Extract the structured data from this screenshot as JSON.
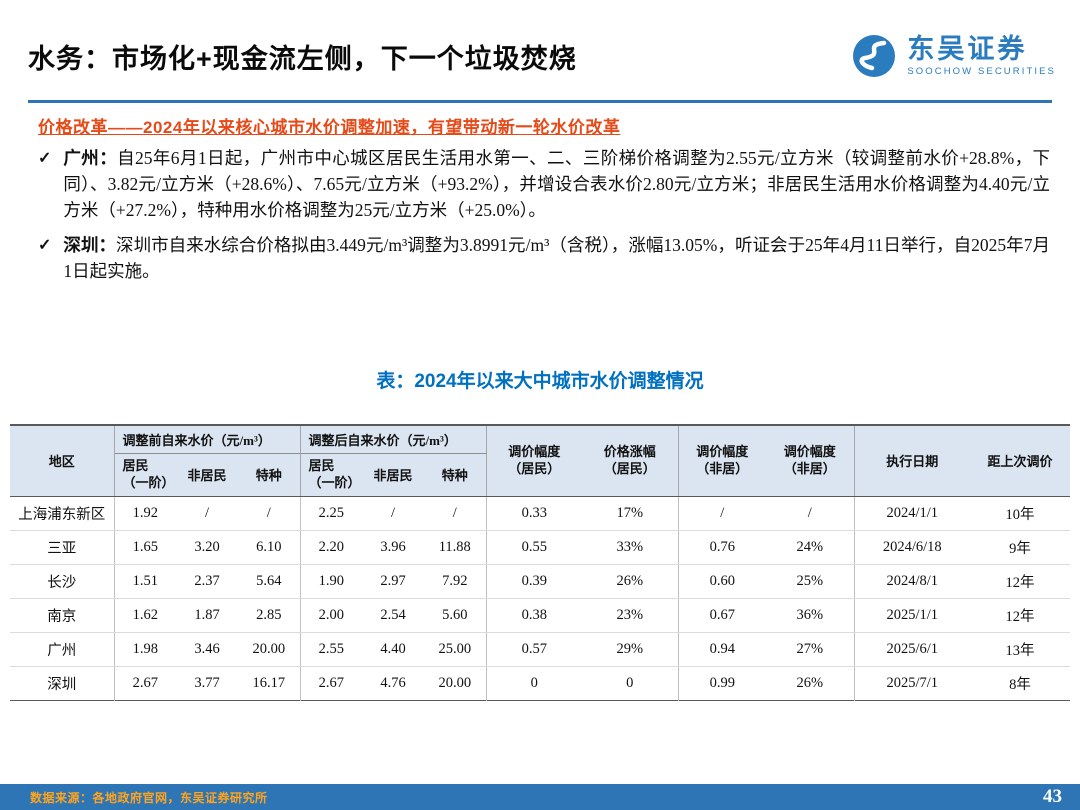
{
  "header": {
    "title": "水务：市场化+现金流左侧，下一个垃圾焚烧",
    "logo_cn": "东吴证券",
    "logo_en": "SOOCHOW SECURITIES"
  },
  "section": {
    "heading": "价格改革——2024年以来核心城市水价调整加速，有望带动新一轮水价改革",
    "bullets": [
      {
        "prefix": "广州：",
        "text": "自25年6月1日起，广州市中心城区居民生活用水第一、二、三阶梯价格调整为2.55元/立方米（较调整前水价+28.8%，下同）、3.82元/立方米（+28.6%）、7.65元/立方米（+93.2%），并增设合表水价2.80元/立方米；非居民生活用水价格调整为4.40元/立方米（+27.2%），特种用水价格调整为25元/立方米（+25.0%）。"
      },
      {
        "prefix": "深圳：",
        "text": "深圳市自来水综合价格拟由3.449元/m³调整为3.8991元/m³（含税），涨幅13.05%，听证会于25年4月11日举行，自2025年7月1日起实施。"
      }
    ]
  },
  "table": {
    "title": "表：2024年以来大中城市水价调整情况",
    "header": {
      "region": "地区",
      "before": "调整前自来水价（元/m³）",
      "after": "调整后自来水价（元/m³）",
      "res1": "居民",
      "res2": "（一阶）",
      "nonres": "非居民",
      "special": "特种",
      "adj_res_1": "调价幅度",
      "adj_res_2": "（居民）",
      "pct_res_1": "价格涨幅",
      "pct_res_2": "（居民）",
      "adj_non1_1": "调价幅度",
      "adj_non1_2": "（非居）",
      "adj_non2_1": "调价幅度",
      "adj_non2_2": "（非居）",
      "date": "执行日期",
      "since": "距上次调价"
    },
    "rows": [
      [
        "上海浦东新区",
        "1.92",
        "/",
        "/",
        "2.25",
        "/",
        "/",
        "0.33",
        "17%",
        "/",
        "/",
        "2024/1/1",
        "10年"
      ],
      [
        "三亚",
        "1.65",
        "3.20",
        "6.10",
        "2.20",
        "3.96",
        "11.88",
        "0.55",
        "33%",
        "0.76",
        "24%",
        "2024/6/18",
        "9年"
      ],
      [
        "长沙",
        "1.51",
        "2.37",
        "5.64",
        "1.90",
        "2.97",
        "7.92",
        "0.39",
        "26%",
        "0.60",
        "25%",
        "2024/8/1",
        "12年"
      ],
      [
        "南京",
        "1.62",
        "1.87",
        "2.85",
        "2.00",
        "2.54",
        "5.60",
        "0.38",
        "23%",
        "0.67",
        "36%",
        "2025/1/1",
        "12年"
      ],
      [
        "广州",
        "1.98",
        "3.46",
        "20.00",
        "2.55",
        "4.40",
        "25.00",
        "0.57",
        "29%",
        "0.94",
        "27%",
        "2025/6/1",
        "13年"
      ],
      [
        "深圳",
        "2.67",
        "3.77",
        "16.17",
        "2.67",
        "4.76",
        "20.00",
        "0",
        "0",
        "0.99",
        "26%",
        "2025/7/1",
        "8年"
      ]
    ]
  },
  "footer": {
    "source": "数据来源：各地政府官网，东吴证券研究所",
    "page": "43"
  }
}
